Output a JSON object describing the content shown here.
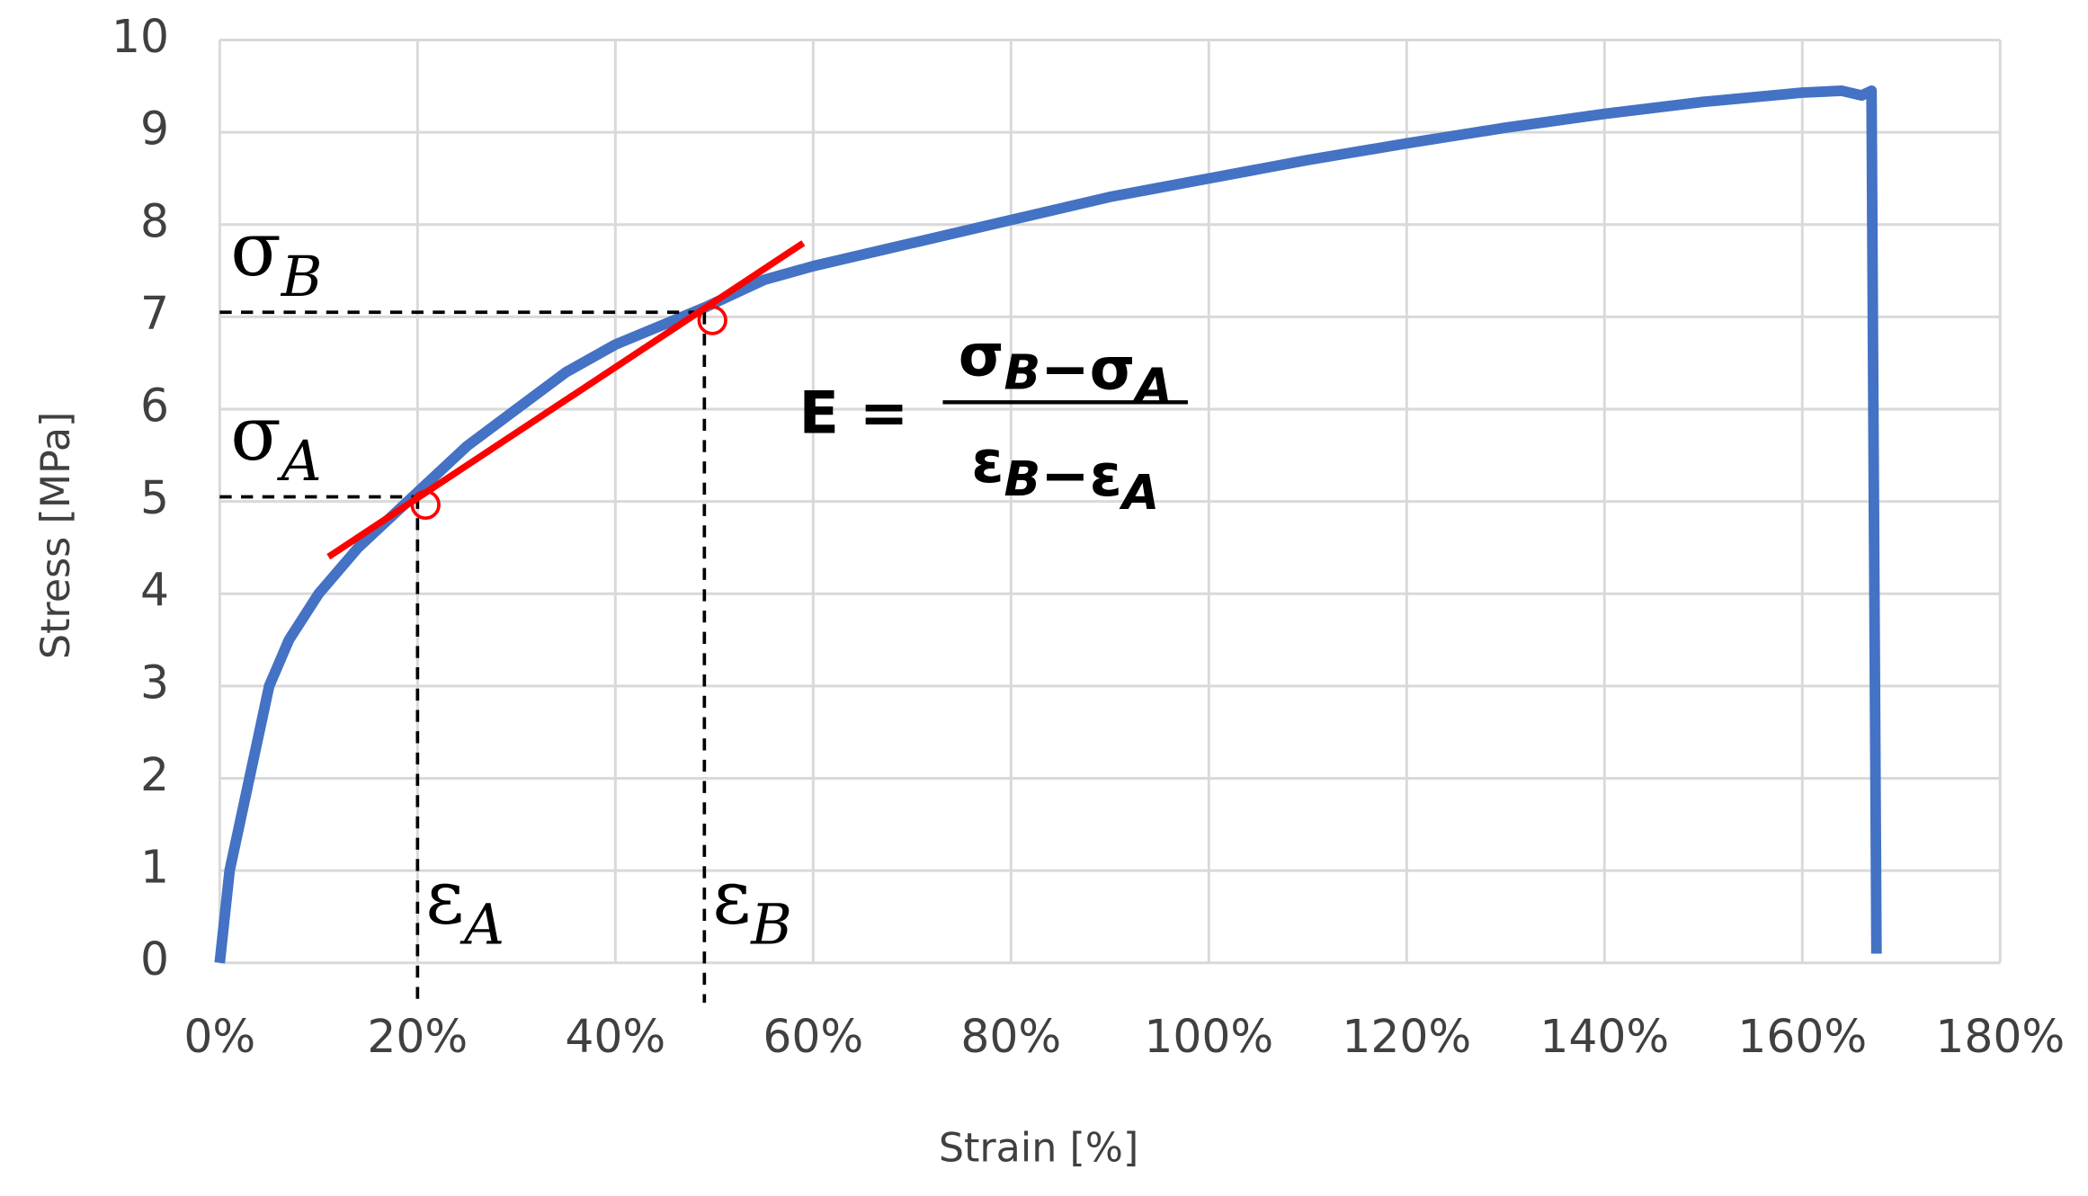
{
  "chart_data": {
    "type": "line",
    "x_label": "Strain [%]",
    "y_label": "Stress [MPa]",
    "x": [
      0,
      0.5,
      1,
      2,
      3,
      4,
      5,
      7,
      10,
      14,
      20,
      25,
      30,
      35,
      40,
      49,
      55,
      60,
      70,
      80,
      90,
      100,
      110,
      120,
      130,
      140,
      150,
      160,
      164,
      166,
      167,
      167.5
    ],
    "series": [
      {
        "color": "#4472c4",
        "values": [
          0,
          0.5,
          1,
          1.5,
          2,
          2.5,
          3,
          3.5,
          4,
          4.5,
          5.1,
          5.6,
          6.0,
          6.4,
          6.7,
          7.1,
          7.4,
          7.55,
          7.8,
          8.05,
          8.3,
          8.5,
          8.7,
          8.88,
          9.05,
          9.2,
          9.33,
          9.43,
          9.45,
          9.4,
          9.45,
          0.1
        ]
      }
    ],
    "xlim": [
      0,
      180
    ],
    "ylim": [
      0,
      10
    ],
    "xticks": [
      {
        "value": 0,
        "label": "0%"
      },
      {
        "value": 20,
        "label": "20%"
      },
      {
        "value": 40,
        "label": "40%"
      },
      {
        "value": 60,
        "label": "60%"
      },
      {
        "value": 80,
        "label": "80%"
      },
      {
        "value": 100,
        "label": "100%"
      },
      {
        "value": 120,
        "label": "120%"
      },
      {
        "value": 140,
        "label": "140%"
      },
      {
        "value": 160,
        "label": "160%"
      },
      {
        "value": 180,
        "label": "180%"
      }
    ],
    "yticks": [
      0,
      1,
      2,
      3,
      4,
      5,
      6,
      7,
      8,
      9,
      10
    ],
    "grid": true,
    "tangent": {
      "color": "#ff0000",
      "x": [
        11,
        59
      ],
      "y": [
        4.4,
        7.8
      ]
    },
    "points": [
      {
        "x": 20,
        "y": 5.05,
        "stress_label": {
          "symbol": "σ",
          "subscript": "A"
        },
        "strain_label": {
          "symbol": "ε",
          "subscript": "A"
        }
      },
      {
        "x": 49,
        "y": 7.05,
        "stress_label": {
          "symbol": "σ",
          "subscript": "B"
        },
        "strain_label": {
          "symbol": "ε",
          "subscript": "B"
        }
      }
    ],
    "formula": {
      "lhs": "E =",
      "numerator": [
        {
          "symbol": "σ",
          "subscript": "B"
        },
        {
          "symbol": "−"
        },
        {
          "symbol": "σ",
          "subscript": "A"
        }
      ],
      "denominator": [
        {
          "symbol": "ε",
          "subscript": "B"
        },
        {
          "symbol": "−"
        },
        {
          "symbol": "ε",
          "subscript": "A"
        }
      ]
    }
  }
}
